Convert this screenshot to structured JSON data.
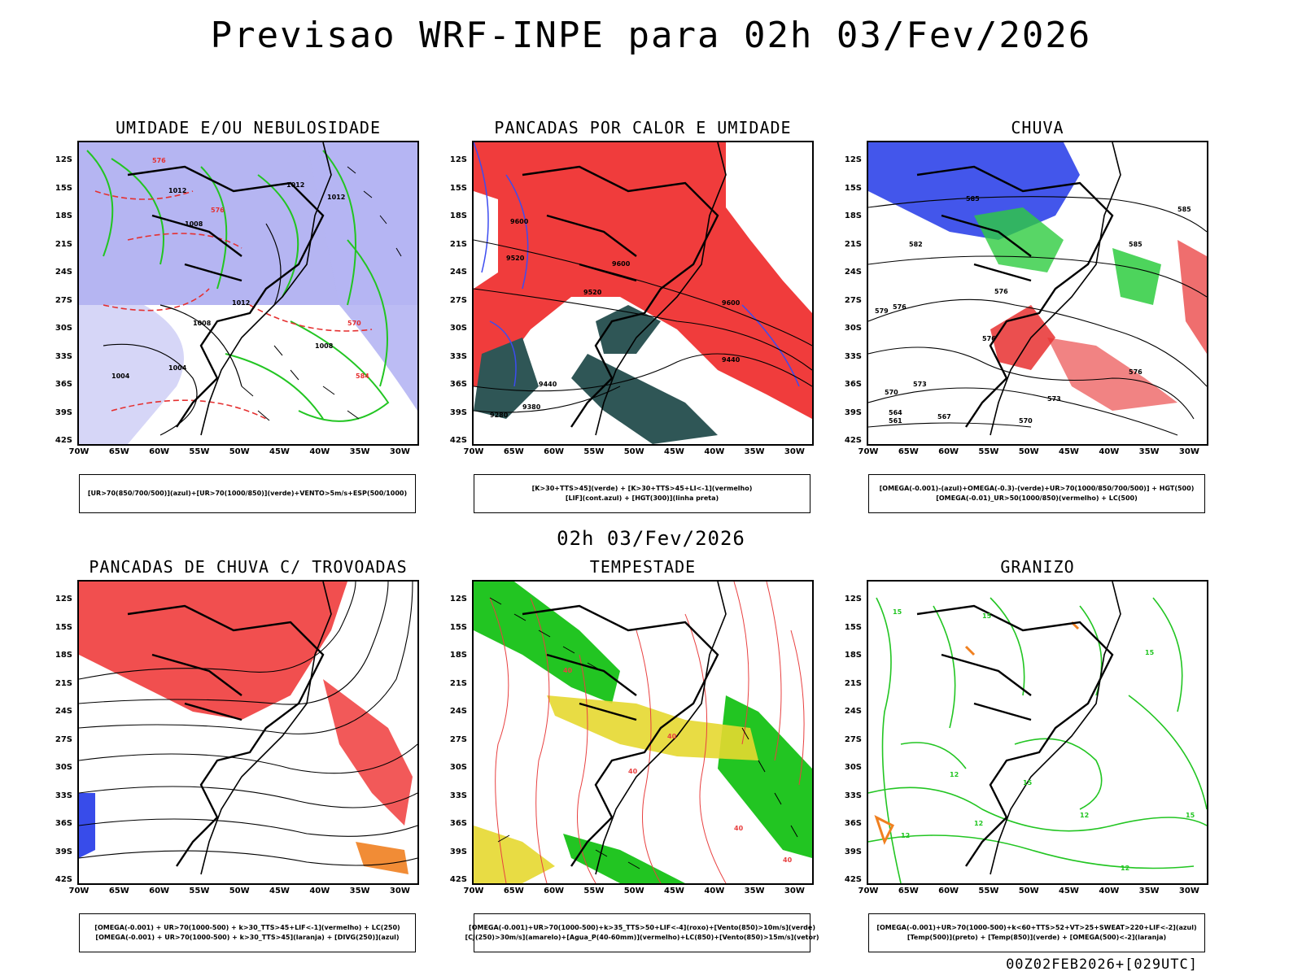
{
  "header": {
    "title": "Previsao WRF-INPE  para 02h 03/Fev/2026"
  },
  "mid_title": "02h 03/Fev/2026",
  "footer": "00Z02FEB2026+[029UTC]",
  "axes": {
    "lat_labels": [
      "12S",
      "15S",
      "18S",
      "21S",
      "24S",
      "27S",
      "30S",
      "33S",
      "36S",
      "39S",
      "42S"
    ],
    "lon_labels": [
      "70W",
      "65W",
      "60W",
      "55W",
      "50W",
      "45W",
      "40W",
      "35W",
      "30W"
    ]
  },
  "panels": [
    {
      "title": "UMIDADE E/OU NEBULOSIDADE",
      "legend": [
        "[UR>70(850/700/500)](azul)+[UR>70(1000/850)](verde)+VENTO>5m/s+ESP(500/1000)"
      ],
      "labels": [
        "1012",
        "1012",
        "1008",
        "1012",
        "1012",
        "1008",
        "1004",
        "1004",
        "1008",
        "576",
        "576",
        "570",
        "584"
      ]
    },
    {
      "title": "PANCADAS POR CALOR E UMIDADE",
      "legend": [
        "[K>30+TTS>45](verde) + [K>30+TTS>45+LI<-1](vermelho)",
        "[LIF](cont.azul) + [HGT(300)](linha preta)"
      ],
      "labels": [
        "9600",
        "9520",
        "9600",
        "9520",
        "9440",
        "9440",
        "9380",
        "9280",
        "9600"
      ]
    },
    {
      "title": "CHUVA",
      "legend": [
        "[OMEGA(-0.001)-(azul)+OMEGA(-0.3)-(verde)+UR>70(1000/850/700/500)] + HGT(500)",
        "[OMEGA(-0.01)_UR>50(1000/850)(vermelho) + LC(500)"
      ],
      "labels": [
        "585",
        "582",
        "585",
        "576",
        "579",
        "576",
        "576",
        "573",
        "570",
        "573",
        "576",
        "564",
        "561",
        "567",
        "570",
        "585"
      ]
    },
    {
      "title": "PANCADAS DE CHUVA C/ TROVOADAS",
      "legend": [
        "[OMEGA(-0.001) + UR>70(1000-500) + k>30_TTS>45+LIF<-1](vermelho) + LC(250)",
        "[OMEGA(-0.001) + UR>70(1000-500) + k>30_TTS>45](laranja) + [DIVG(250)](azul)"
      ],
      "labels": []
    },
    {
      "title": "TEMPESTADE",
      "legend": [
        "[OMEGA(-0.001)+UR>70(1000-500)+k>35_TTS>50+LIF<-4](roxo)+[Vento(850)>10m/s](verde)",
        "[CJ(250)>30m/s](amarelo)+[Agua_P(40-60mm)](vermelho)+LC(850)+[Vento(850)>15m/s](vetor)"
      ],
      "labels": [
        "40",
        "40",
        "40",
        "40",
        "40"
      ]
    },
    {
      "title": "GRANIZO",
      "legend": [
        "[OMEGA(-0.001)+UR>70(1000-500)+k<60+TTS>52+VT>25+SWEAT>220+LIF<-2](azul)",
        "[Temp(500)](preto) + [Temp(850)](verde) + [OMEGA(500)<-2](laranja)"
      ],
      "labels": [
        "15",
        "15",
        "15",
        "15",
        "12",
        "12",
        "12",
        "12",
        "15",
        "12"
      ]
    }
  ]
}
